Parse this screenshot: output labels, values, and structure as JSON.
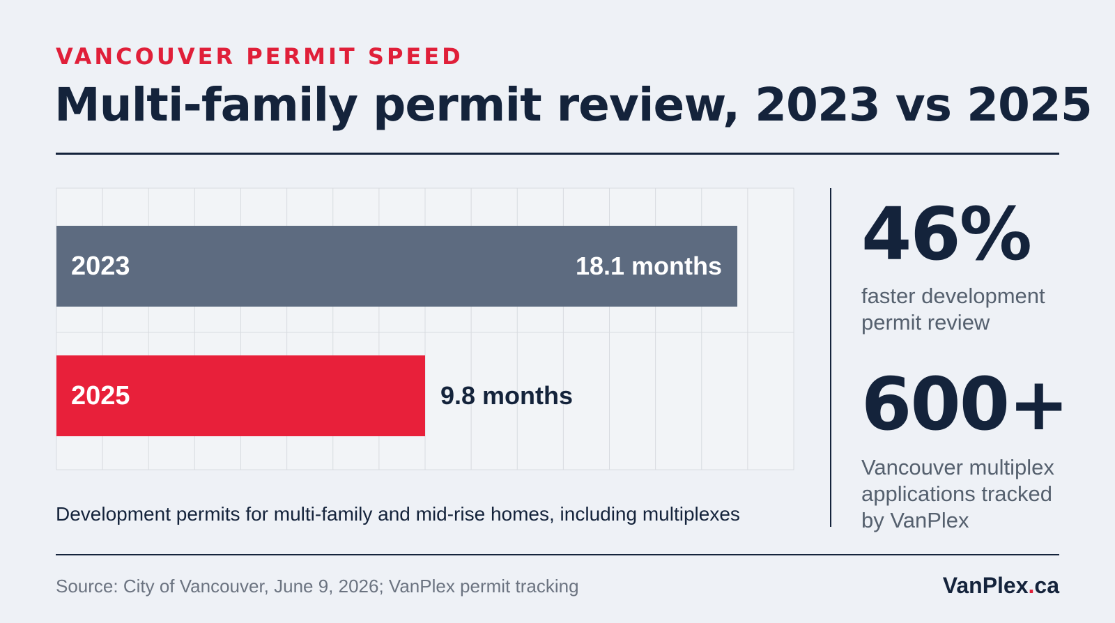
{
  "header": {
    "eyebrow": "VANCOUVER PERMIT SPEED",
    "title": "Multi-family permit review, 2023 vs 2025"
  },
  "chart_data": {
    "type": "bar",
    "orientation": "horizontal",
    "categories": [
      "2023",
      "2025"
    ],
    "values": [
      18.1,
      9.8
    ],
    "value_labels": [
      "18.1 months",
      "9.8 months"
    ],
    "unit": "months",
    "xlim": [
      0,
      19.6
    ],
    "grid": true,
    "bar_colors": [
      "#5d6b80",
      "#e8203a"
    ]
  },
  "caption": "Development permits for multi-family and mid-rise homes, including multiplexes",
  "stats": [
    {
      "value": "46%",
      "description": "faster development permit review"
    },
    {
      "value": "600+",
      "description": "Vancouver multiplex applications tracked by VanPlex"
    }
  ],
  "footer": {
    "source": "Source: City of Vancouver, June 9, 2026; VanPlex permit tracking",
    "brand_name": "VanPlex",
    "brand_dot": ".",
    "brand_tld": "ca"
  },
  "colors": {
    "accent": "#e01f39",
    "navy": "#14233b",
    "bar_2023": "#5d6b80",
    "bar_2025": "#e8203a",
    "background": "#eef1f6"
  }
}
